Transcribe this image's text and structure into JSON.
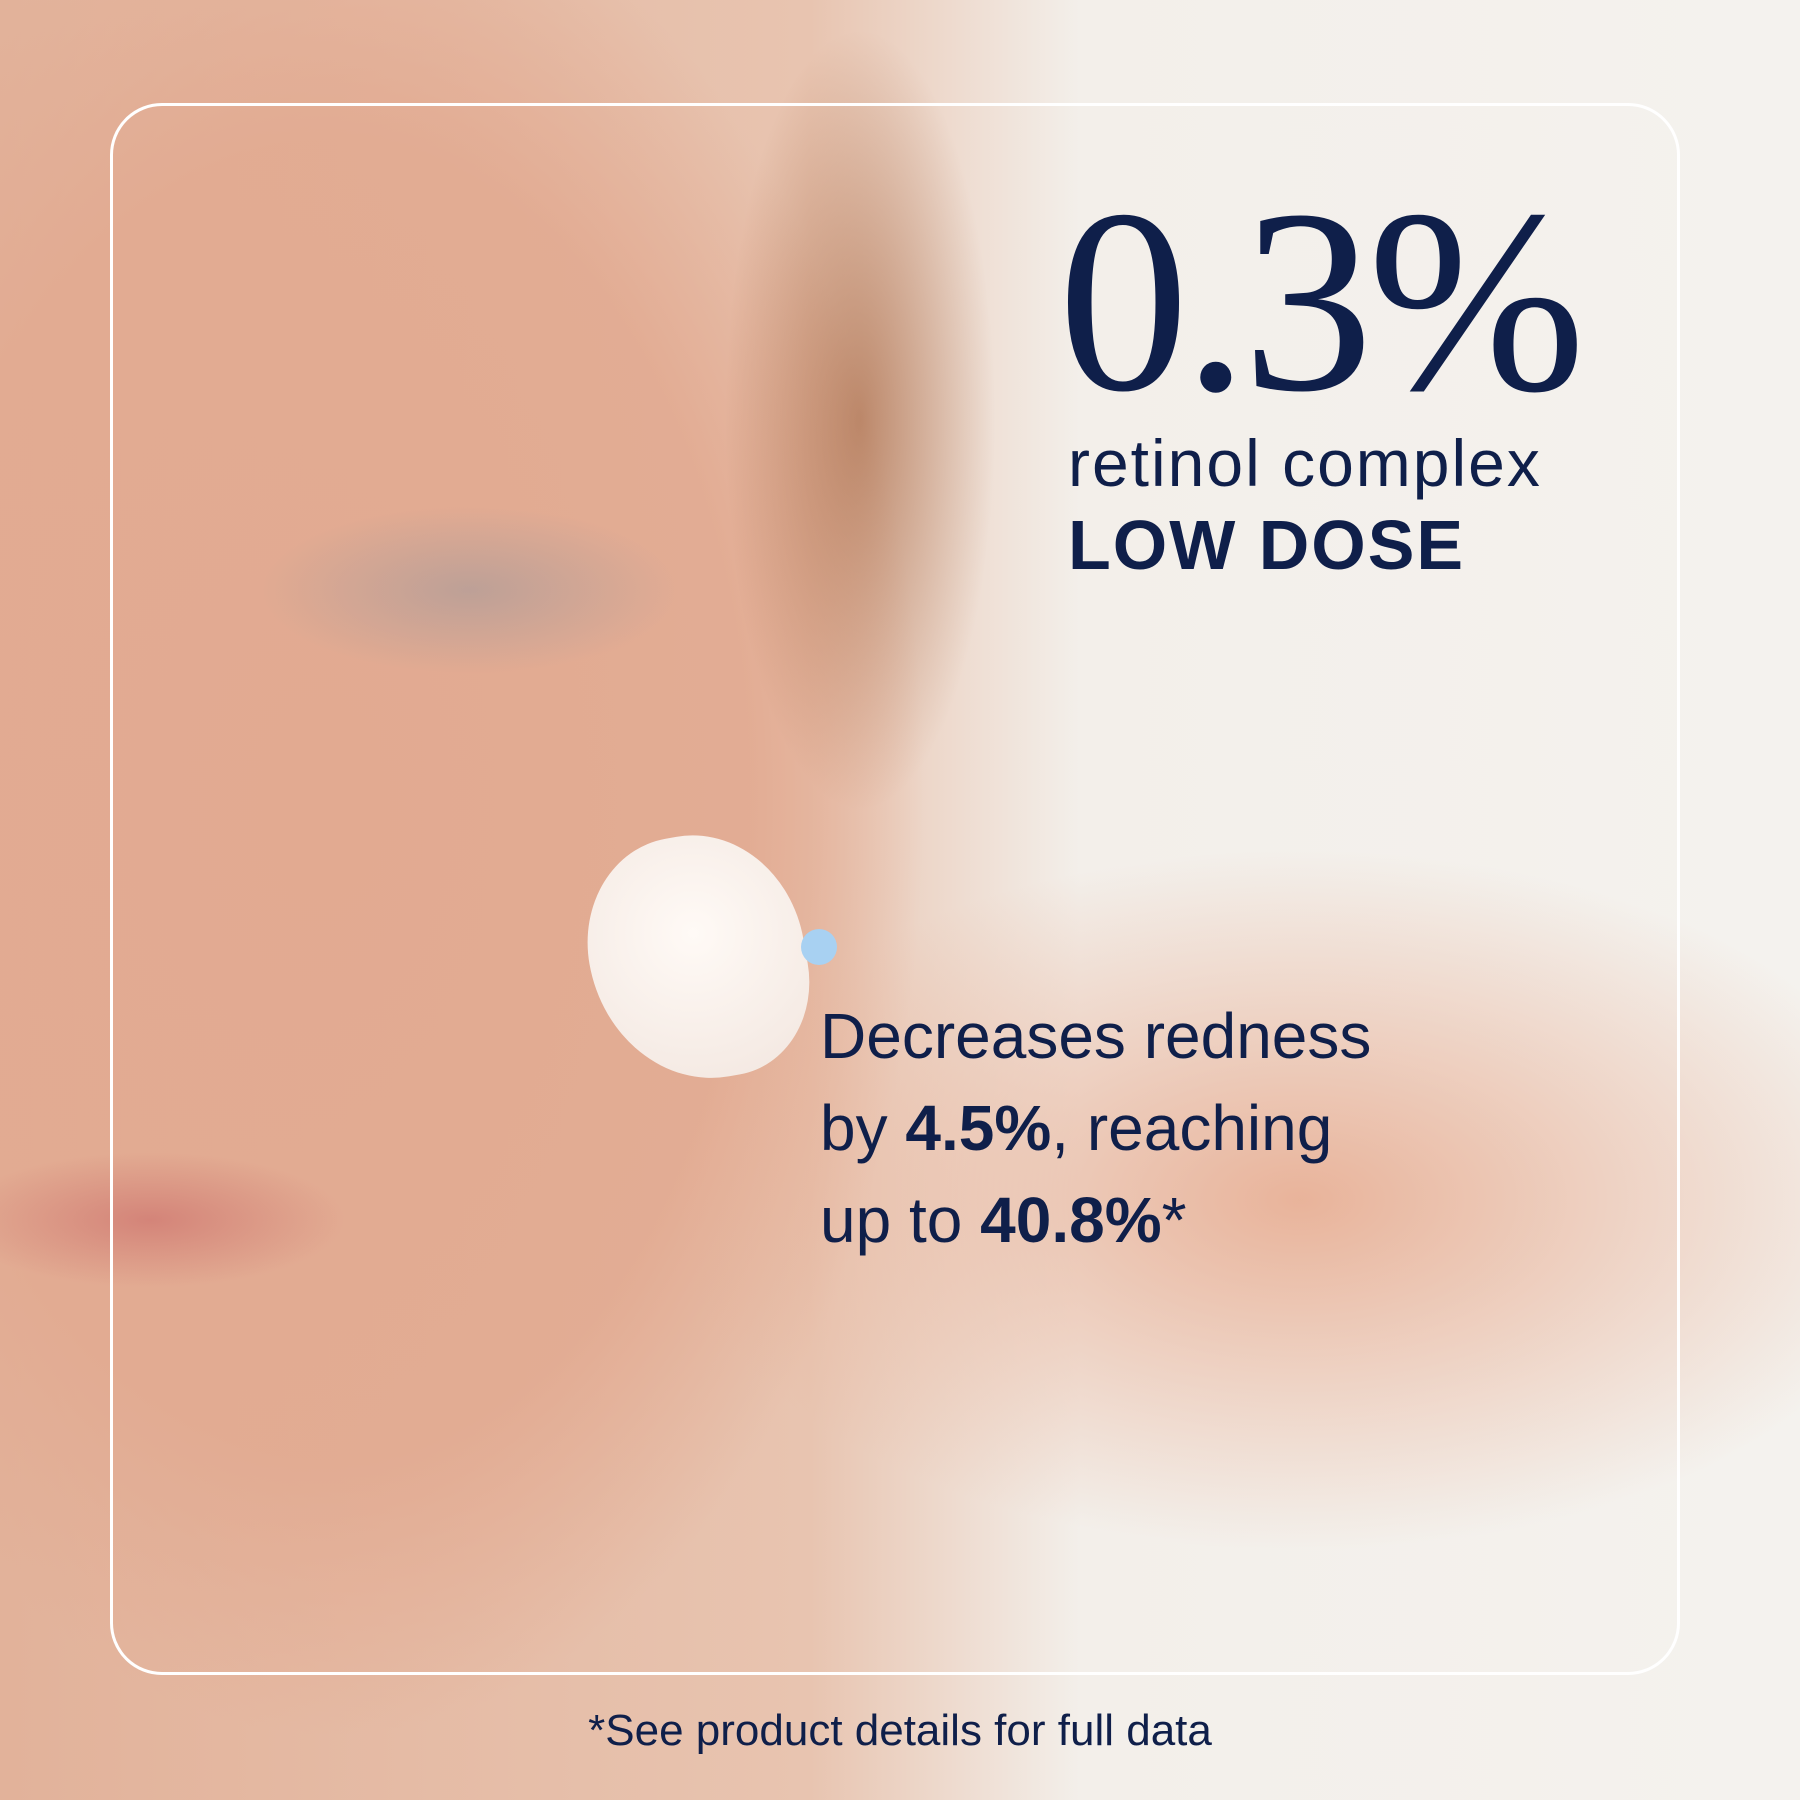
{
  "headline": {
    "value": "0.3%",
    "line1": "retinol complex",
    "line2": "LOW DOSE"
  },
  "claim": {
    "l1": "Decreases redness",
    "l2_pre": "by ",
    "l2_bold": "4.5%",
    "l2_post": ", reaching",
    "l3_pre": "up to ",
    "l3_bold": "40.8%",
    "l3_post": "*"
  },
  "footnote": "*See product details for full data",
  "colors": {
    "text": "#0f1f4a",
    "dot": "#a8d1f2",
    "frame": "#ffffff"
  }
}
